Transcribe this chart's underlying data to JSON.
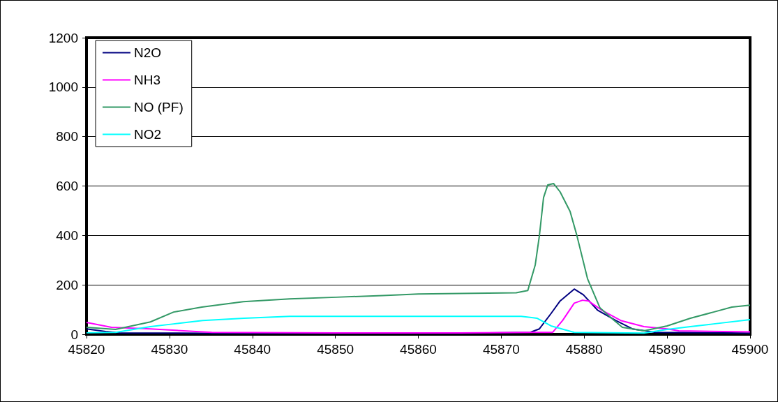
{
  "chart_data": {
    "type": "line",
    "xlim": [
      45820,
      45900
    ],
    "xticks": [
      45820,
      45830,
      45840,
      45850,
      45860,
      45870,
      45880,
      45890,
      45900
    ],
    "ylim": [
      0,
      1200
    ],
    "yticks": [
      0,
      200,
      400,
      600,
      800,
      1000,
      1200
    ],
    "grid": "y",
    "legend": "top left",
    "marker": "none",
    "line_style": "solid",
    "series": [
      {
        "name": "N2O",
        "color": "#000080",
        "x": [
          45820,
          45822.3,
          45824,
          45835,
          45850,
          45865,
          45873.5,
          45874.6,
          45876,
          45877.1,
          45878.8,
          45879.9,
          45881.6,
          45883.8,
          45885.8,
          45888.6,
          45900
        ],
        "values": [
          22,
          11,
          6,
          4,
          4,
          4,
          8,
          22,
          84,
          135,
          183,
          160,
          98,
          56,
          22,
          8,
          5
        ]
      },
      {
        "name": "NH3",
        "color": "#ff00ff",
        "x": [
          45820,
          45821.4,
          45823,
          45827.7,
          45831.7,
          45835.1,
          45850,
          45865,
          45876.2,
          45877.4,
          45878.8,
          45879.8,
          45880.5,
          45882.1,
          45884.4,
          45887.2,
          45890,
          45891.4,
          45900
        ],
        "values": [
          48,
          39,
          28,
          22,
          14,
          8,
          6,
          6,
          8,
          56,
          126,
          138,
          135,
          98,
          56,
          31,
          22,
          14,
          10
        ]
      },
      {
        "name": "NO (PF)",
        "color": "#339966",
        "x": [
          45820,
          45823.5,
          45827.7,
          45830.5,
          45833.9,
          45838.9,
          45844.5,
          45850.1,
          45855.7,
          45858.6,
          45860,
          45871.8,
          45873.2,
          45874.1,
          45874.6,
          45875.1,
          45875.6,
          45876.3,
          45877.1,
          45878.3,
          45879.1,
          45880.4,
          45881.9,
          45883.3,
          45884.6,
          45887.2,
          45890,
          45892.8,
          45895.6,
          45897.8,
          45900
        ],
        "values": [
          28,
          20,
          50,
          90,
          110,
          132,
          143,
          150,
          157,
          161,
          163,
          168,
          177,
          281,
          399,
          553,
          604,
          610,
          576,
          497,
          402,
          225,
          107,
          65,
          28,
          14,
          34,
          65,
          90,
          110,
          118
        ]
      },
      {
        "name": "NO2",
        "color": "#00ffff",
        "x": [
          45820,
          45823.5,
          45827.7,
          45830.5,
          45834,
          45839,
          45844.5,
          45872.4,
          45874.3,
          45876,
          45878.8,
          45887.2,
          45890,
          45892.8,
          45895.6,
          45900
        ],
        "values": [
          6,
          8,
          31,
          42,
          56,
          65,
          73,
          73,
          65,
          34,
          8,
          5,
          20,
          31,
          42,
          59
        ]
      }
    ]
  }
}
